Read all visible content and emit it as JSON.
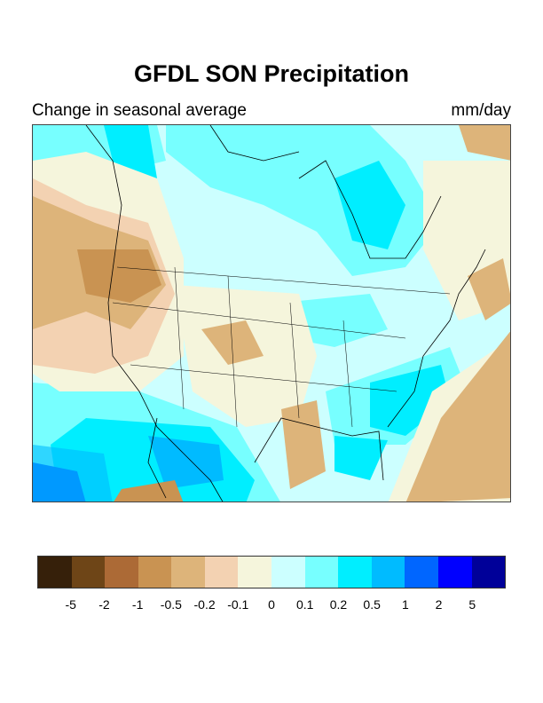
{
  "title": "GFDL SON Precipitation",
  "subtitle": "Change in seasonal average",
  "units": "mm/day",
  "colorbar": {
    "colors": [
      "#36200a",
      "#6e4517",
      "#ac6a36",
      "#c99352",
      "#ddb47a",
      "#f3d2b2",
      "#f5f5dc",
      "#ccffff",
      "#77ffff",
      "#00eeff",
      "#00bbff",
      "#0066ff",
      "#0000ff",
      "#000099"
    ],
    "labels": [
      "-5",
      "-2",
      "-1",
      "-0.5",
      "-0.2",
      "-0.1",
      "0",
      "0.1",
      "0.2",
      "0.5",
      "1",
      "2",
      "5"
    ]
  }
}
